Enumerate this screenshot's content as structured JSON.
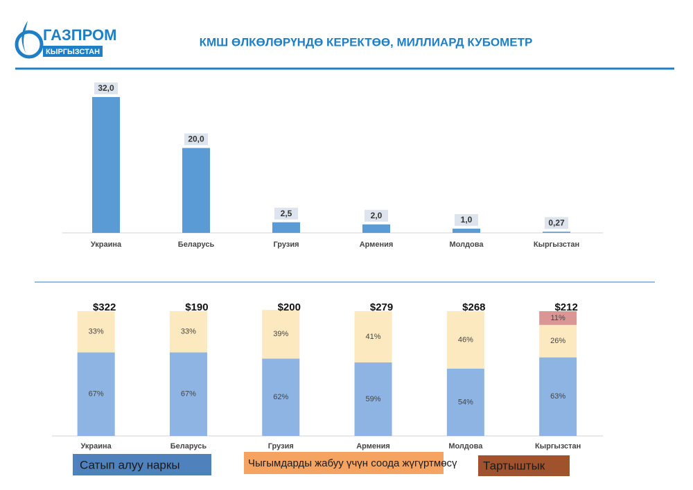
{
  "header": {
    "logo_top": "ГАЗПРОМ",
    "logo_bottom": "КЫРГЫЗСТАН",
    "title": "КМШ ӨЛКӨЛӨРҮНДӨ КЕРЕКТӨӨ, МИЛЛИАРД КУБОМЕТР"
  },
  "chart_data": [
    {
      "type": "bar",
      "categories": [
        "Украина",
        "Беларусь",
        "Грузия",
        "Армения",
        "Молдова",
        "Кыргызстан"
      ],
      "values": [
        32.0,
        20.0,
        2.5,
        2.0,
        1.0,
        0.27
      ],
      "value_labels": [
        "32,0",
        "20,0",
        "2,5",
        "2,0",
        "1,0",
        "0,27"
      ],
      "color": "#5b9bd5"
    },
    {
      "type": "stacked_bar",
      "categories": [
        "Украина",
        "Беларусь",
        "Грузия",
        "Армения",
        "Молдова",
        "Кыргызстан"
      ],
      "series": [
        {
          "name": "Сатып алуу наркы",
          "color": "#8eb4e3",
          "values": [
            67,
            67,
            62,
            59,
            54,
            63
          ],
          "value_labels": [
            "67%",
            "67%",
            "62%",
            "59%",
            "54%",
            "63%"
          ]
        },
        {
          "name": "Чыгымдарды жабуу үчүн соода жүгүртмөсү",
          "color": "#fde9c0",
          "values": [
            33,
            33,
            39,
            41,
            46,
            26
          ],
          "value_labels": [
            "33%",
            "33%",
            "39%",
            "41%",
            "46%",
            "26%"
          ]
        },
        {
          "name": "Тартыштык",
          "color": "#d99694",
          "values": [
            null,
            null,
            null,
            null,
            null,
            11
          ],
          "value_labels": [
            null,
            null,
            null,
            null,
            null,
            "11%"
          ]
        }
      ],
      "annotations": [
        "$322",
        "$190",
        "$200",
        "$279",
        "$268",
        "$212"
      ]
    }
  ]
}
